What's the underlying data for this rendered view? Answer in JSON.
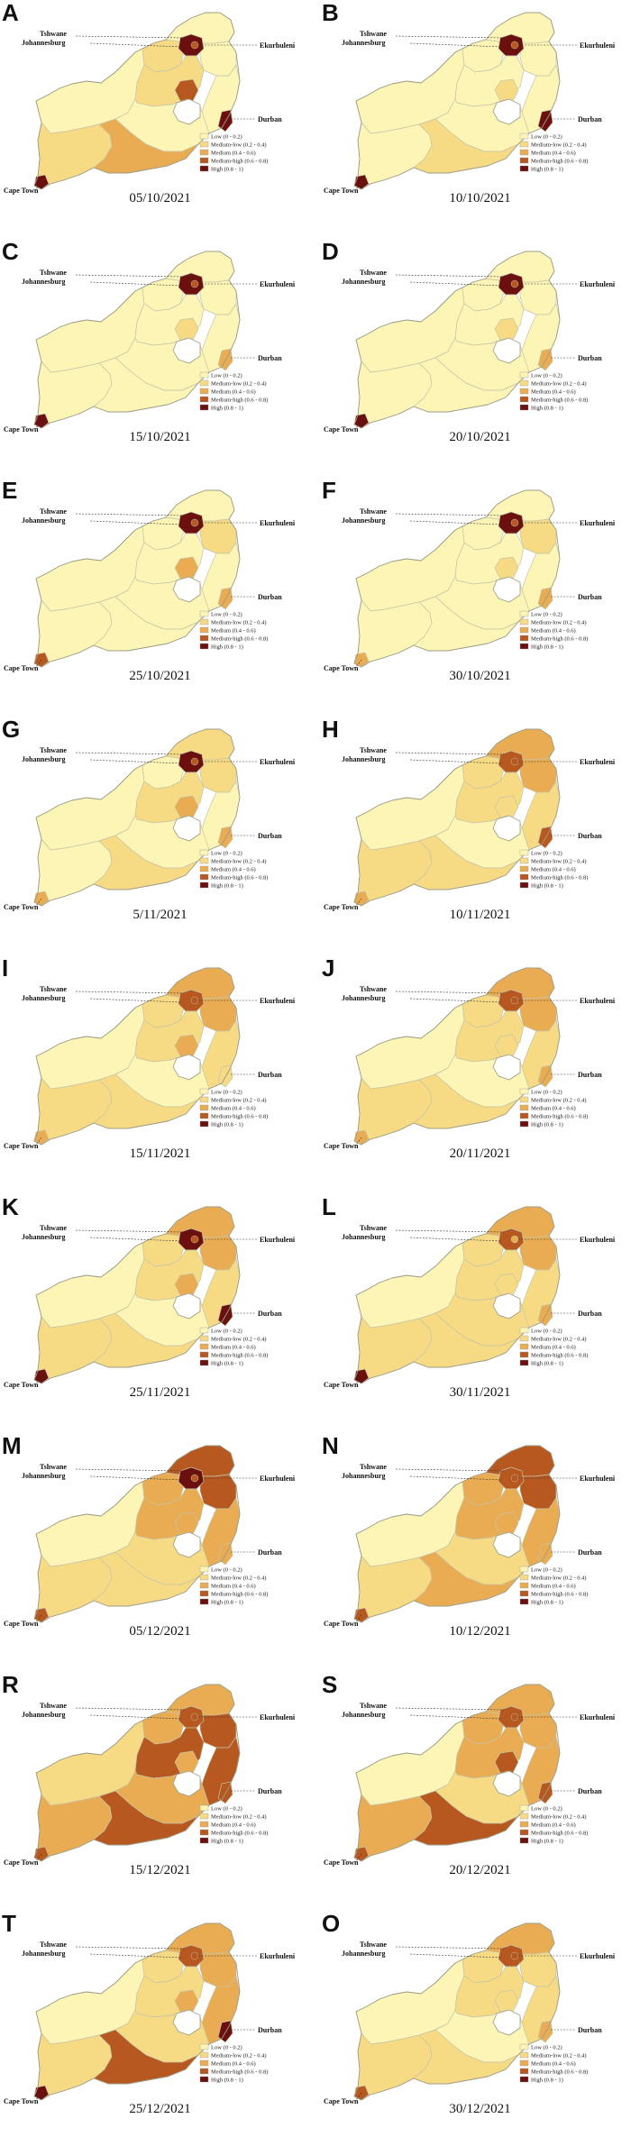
{
  "colors": {
    "low": "#fdf5b5",
    "medium_low": "#f7da84",
    "medium": "#eaac52",
    "medium_high": "#b6581f",
    "high": "#6b0f0f",
    "border": "#c4c4a8",
    "outline": "#9c9c86"
  },
  "cities": {
    "tshwane": "Tshwane",
    "johannesburg": "Johannesburg",
    "ekurhuleni": "Ekurhuleni",
    "durban": "Durban",
    "cape_town": "Cape Town"
  },
  "legend": [
    {
      "label": "Low (0 - 0.2)",
      "color": "#fdf5b5"
    },
    {
      "label": "Medium-low (0.2 - 0.4)",
      "color": "#f7da84"
    },
    {
      "label": "Medium (0.4 - 0.6)",
      "color": "#eaac52"
    },
    {
      "label": "Medium-high (0.6 - 0.8)",
      "color": "#b6581f"
    },
    {
      "label": "High (0.8 - 1)",
      "color": "#6b0f0f"
    }
  ],
  "panels": [
    {
      "letter": "A",
      "date": "05/10/2021",
      "levels": {
        "gauteng": 4,
        "ekurhuleni": 3,
        "north_west": 1,
        "limpopo": 0,
        "mpumalanga": 0,
        "free_state_n": 1,
        "free_state_e": 3,
        "kzn_north": 0,
        "durban": 4,
        "eastern_cape_e": 0,
        "eastern_cape_s": 2,
        "northern_cape": 0,
        "western_cape": 1,
        "cape_town": 4
      }
    },
    {
      "letter": "B",
      "date": "10/10/2021",
      "levels": {
        "gauteng": 4,
        "ekurhuleni": 3,
        "north_west": 0,
        "limpopo": 0,
        "mpumalanga": 0,
        "free_state_n": 0,
        "free_state_e": 1,
        "kzn_north": 0,
        "durban": 4,
        "eastern_cape_e": 0,
        "eastern_cape_s": 1,
        "northern_cape": 0,
        "western_cape": 0,
        "cape_town": 4
      }
    },
    {
      "letter": "C",
      "date": "15/10/2021",
      "levels": {
        "gauteng": 4,
        "ekurhuleni": 3,
        "north_west": 0,
        "limpopo": 0,
        "mpumalanga": 0,
        "free_state_n": 0,
        "free_state_e": 1,
        "kzn_north": 0,
        "durban": 2,
        "eastern_cape_e": 0,
        "eastern_cape_s": 0,
        "northern_cape": 0,
        "western_cape": 0,
        "cape_town": 4
      }
    },
    {
      "letter": "D",
      "date": "20/10/2021",
      "levels": {
        "gauteng": 4,
        "ekurhuleni": 3,
        "north_west": 0,
        "limpopo": 0,
        "mpumalanga": 0,
        "free_state_n": 0,
        "free_state_e": 1,
        "kzn_north": 0,
        "durban": 2,
        "eastern_cape_e": 0,
        "eastern_cape_s": 0,
        "northern_cape": 0,
        "western_cape": 0,
        "cape_town": 4
      }
    },
    {
      "letter": "E",
      "date": "25/10/2021",
      "levels": {
        "gauteng": 4,
        "ekurhuleni": 3,
        "north_west": 0,
        "limpopo": 0,
        "mpumalanga": 1,
        "free_state_n": 0,
        "free_state_e": 2,
        "kzn_north": 0,
        "durban": 2,
        "eastern_cape_e": 0,
        "eastern_cape_s": 0,
        "northern_cape": 0,
        "western_cape": 0,
        "cape_town": 3
      }
    },
    {
      "letter": "F",
      "date": "30/10/2021",
      "levels": {
        "gauteng": 4,
        "ekurhuleni": 3,
        "north_west": 0,
        "limpopo": 0,
        "mpumalanga": 1,
        "free_state_n": 0,
        "free_state_e": 1,
        "kzn_north": 0,
        "durban": 2,
        "eastern_cape_e": 0,
        "eastern_cape_s": 0,
        "northern_cape": 0,
        "western_cape": 0,
        "cape_town": 2
      }
    },
    {
      "letter": "G",
      "date": "5/11/2021",
      "levels": {
        "gauteng": 4,
        "ekurhuleni": 3,
        "north_west": 0,
        "limpopo": 1,
        "mpumalanga": 1,
        "free_state_n": 1,
        "free_state_e": 2,
        "kzn_north": 0,
        "durban": 2,
        "eastern_cape_e": 0,
        "eastern_cape_s": 1,
        "northern_cape": 0,
        "western_cape": 0,
        "cape_town": 2
      }
    },
    {
      "letter": "H",
      "date": "10/11/2021",
      "levels": {
        "gauteng": 3,
        "ekurhuleni": 3,
        "north_west": 1,
        "limpopo": 2,
        "mpumalanga": 2,
        "free_state_n": 1,
        "free_state_e": 1,
        "kzn_north": 1,
        "durban": 3,
        "eastern_cape_e": 0,
        "eastern_cape_s": 1,
        "northern_cape": 0,
        "western_cape": 1,
        "cape_town": 2
      }
    },
    {
      "letter": "I",
      "date": "15/11/2021",
      "levels": {
        "gauteng": 3,
        "ekurhuleni": 3,
        "north_west": 1,
        "limpopo": 2,
        "mpumalanga": 2,
        "free_state_n": 1,
        "free_state_e": 2,
        "kzn_north": 1,
        "durban": 1,
        "eastern_cape_e": 0,
        "eastern_cape_s": 1,
        "northern_cape": 0,
        "western_cape": 1,
        "cape_town": 2
      }
    },
    {
      "letter": "J",
      "date": "20/11/2021",
      "levels": {
        "gauteng": 3,
        "ekurhuleni": 3,
        "north_west": 1,
        "limpopo": 2,
        "mpumalanga": 2,
        "free_state_n": 1,
        "free_state_e": 1,
        "kzn_north": 1,
        "durban": 2,
        "eastern_cape_e": 0,
        "eastern_cape_s": 1,
        "northern_cape": 0,
        "western_cape": 1,
        "cape_town": 2
      }
    },
    {
      "letter": "K",
      "date": "25/11/2021",
      "levels": {
        "gauteng": 4,
        "ekurhuleni": 3,
        "north_west": 1,
        "limpopo": 2,
        "mpumalanga": 2,
        "free_state_n": 1,
        "free_state_e": 2,
        "kzn_north": 1,
        "durban": 4,
        "eastern_cape_e": 0,
        "eastern_cape_s": 1,
        "northern_cape": 0,
        "western_cape": 1,
        "cape_town": 4
      }
    },
    {
      "letter": "L",
      "date": "30/11/2021",
      "levels": {
        "gauteng": 3,
        "ekurhuleni": 2,
        "north_west": 1,
        "limpopo": 2,
        "mpumalanga": 2,
        "free_state_n": 1,
        "free_state_e": 1,
        "kzn_north": 1,
        "durban": 2,
        "eastern_cape_e": 1,
        "eastern_cape_s": 1,
        "northern_cape": 0,
        "western_cape": 1,
        "cape_town": 4
      }
    },
    {
      "letter": "M",
      "date": "05/12/2021",
      "levels": {
        "gauteng": 4,
        "ekurhuleni": 3,
        "north_west": 2,
        "limpopo": 3,
        "mpumalanga": 3,
        "free_state_n": 2,
        "free_state_e": 2,
        "kzn_north": 2,
        "durban": 2,
        "eastern_cape_e": 1,
        "eastern_cape_s": 1,
        "northern_cape": 0,
        "western_cape": 1,
        "cape_town": 3
      }
    },
    {
      "letter": "N",
      "date": "10/12/2021",
      "levels": {
        "gauteng": 3,
        "ekurhuleni": 3,
        "north_west": 2,
        "limpopo": 3,
        "mpumalanga": 3,
        "free_state_n": 2,
        "free_state_e": 2,
        "kzn_north": 2,
        "durban": 2,
        "eastern_cape_e": 1,
        "eastern_cape_s": 2,
        "northern_cape": 0,
        "western_cape": 1,
        "cape_town": 3
      }
    },
    {
      "letter": "R",
      "date": "15/12/2021",
      "levels": {
        "gauteng": 3,
        "ekurhuleni": 3,
        "north_west": 2,
        "limpopo": 2,
        "mpumalanga": 3,
        "free_state_n": 3,
        "free_state_e": 2,
        "kzn_north": 3,
        "durban": 3,
        "eastern_cape_e": 2,
        "eastern_cape_s": 3,
        "northern_cape": 1,
        "western_cape": 2,
        "cape_town": 3
      }
    },
    {
      "letter": "S",
      "date": "20/12/2021",
      "levels": {
        "gauteng": 3,
        "ekurhuleni": 3,
        "north_west": 2,
        "limpopo": 2,
        "mpumalanga": 2,
        "free_state_n": 2,
        "free_state_e": 3,
        "kzn_north": 2,
        "durban": 3,
        "eastern_cape_e": 1,
        "eastern_cape_s": 3,
        "northern_cape": 0,
        "western_cape": 2,
        "cape_town": 3
      }
    },
    {
      "letter": "T",
      "date": "25/12/2021",
      "levels": {
        "gauteng": 3,
        "ekurhuleni": 3,
        "north_west": 1,
        "limpopo": 2,
        "mpumalanga": 2,
        "free_state_n": 1,
        "free_state_e": 2,
        "kzn_north": 2,
        "durban": 4,
        "eastern_cape_e": 1,
        "eastern_cape_s": 3,
        "northern_cape": 0,
        "western_cape": 1,
        "cape_town": 4
      }
    },
    {
      "letter": "O",
      "date": "30/12/2021",
      "levels": {
        "gauteng": 3,
        "ekurhuleni": 3,
        "north_west": 1,
        "limpopo": 2,
        "mpumalanga": 1,
        "free_state_n": 1,
        "free_state_e": 1,
        "kzn_north": 1,
        "durban": 2,
        "eastern_cape_e": 0,
        "eastern_cape_s": 1,
        "northern_cape": 0,
        "western_cape": 1,
        "cape_town": 3
      }
    }
  ]
}
